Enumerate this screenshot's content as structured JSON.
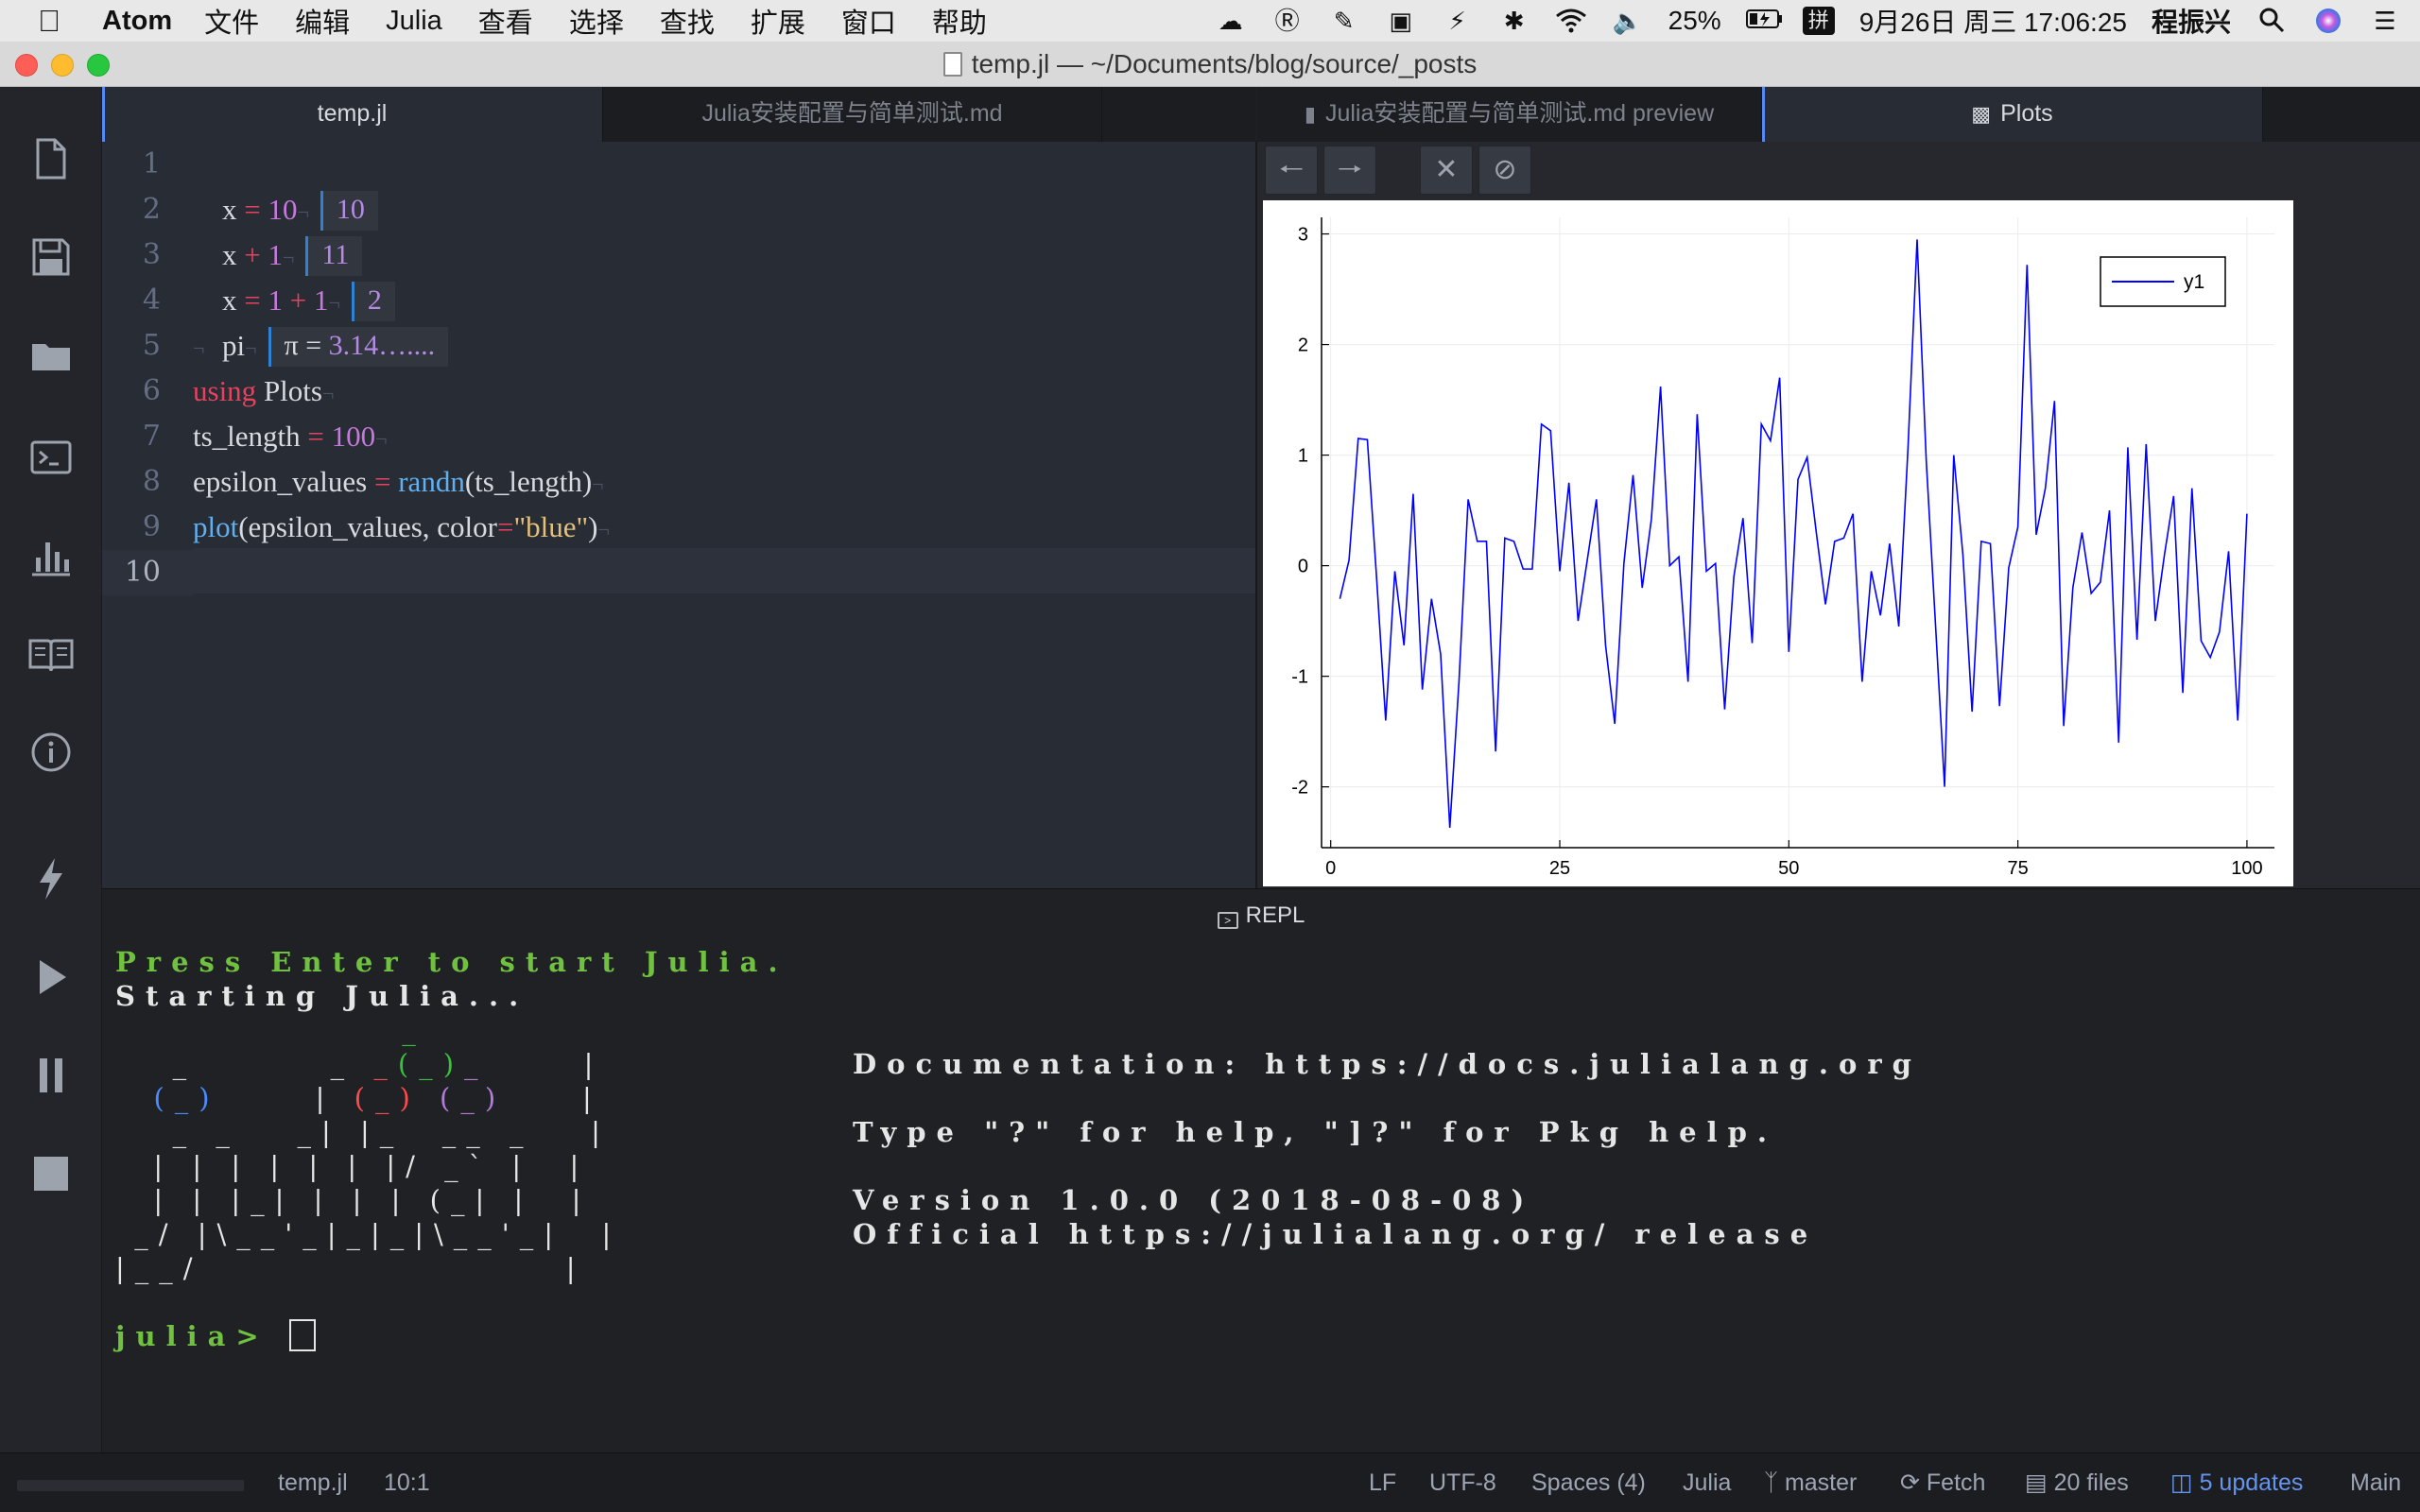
{
  "menubar": {
    "app_name": "Atom",
    "menus": [
      "文件",
      "编辑",
      "Julia",
      "查看",
      "选择",
      "查找",
      "扩展",
      "窗口",
      "帮助"
    ],
    "battery": "25%",
    "input_method": "拼",
    "datetime": "9月26日 周三  17:06:25",
    "user": "程振兴"
  },
  "window": {
    "title": "temp.jl — ~/Documents/blog/source/_posts"
  },
  "tabs_left": [
    {
      "label": "temp.jl",
      "active": true
    },
    {
      "label": "Julia安装配置与简单测试.md",
      "active": false
    }
  ],
  "tabs_right": [
    {
      "label": "Julia安装配置与简单测试.md preview",
      "active": false
    },
    {
      "label": "Plots",
      "active": true
    }
  ],
  "editor": {
    "line_numbers": [
      "1",
      "2",
      "3",
      "4",
      "5",
      "6",
      "7",
      "8",
      "9",
      "10"
    ],
    "results": {
      "l1": "10",
      "l2": "11",
      "l3": "2",
      "l4_sym": "π",
      "l4_eq": " = ",
      "l4_val": "3.14…...."
    },
    "eol": "¬"
  },
  "plot_toolbar": [
    "back",
    "forward",
    "close",
    "clear"
  ],
  "chart_data": {
    "type": "line",
    "series": [
      {
        "name": "y1",
        "color": "#0000ff",
        "values": [
          -0.3,
          0.05,
          1.15,
          1.14,
          -0.1,
          -1.4,
          -0.05,
          -0.72,
          0.65,
          -1.12,
          -0.3,
          -0.8,
          -2.37,
          -1.05,
          0.6,
          0.22,
          0.22,
          -1.68,
          0.25,
          0.22,
          -0.03,
          -0.03,
          1.28,
          1.22,
          -0.05,
          0.75,
          -0.5,
          0.05,
          0.6,
          -0.72,
          -1.43,
          0.02,
          0.82,
          -0.2,
          0.42,
          1.62,
          0.0,
          0.08,
          -1.05,
          1.37,
          -0.05,
          0.02,
          -1.3,
          -0.1,
          0.43,
          -0.7,
          1.28,
          1.13,
          1.7,
          -0.78,
          0.78,
          0.98,
          0.3,
          -0.35,
          0.22,
          0.25,
          0.47,
          -1.05,
          -0.05,
          -0.45,
          0.2,
          -0.55,
          1.05,
          2.95,
          0.95,
          -0.52,
          -2.0,
          1.0,
          0.1,
          -1.32,
          0.22,
          0.2,
          -1.27,
          -0.02,
          0.35,
          2.72,
          0.28,
          0.7,
          1.49,
          -1.45,
          -0.2,
          0.3,
          -0.25,
          -0.15,
          0.5,
          -1.6,
          1.07,
          -0.67,
          1.1,
          -0.5,
          0.1,
          0.63,
          -1.15,
          0.7,
          -0.68,
          -0.83,
          -0.6,
          0.13,
          -1.4,
          0.47
        ]
      }
    ],
    "x_start": 1,
    "xlim": [
      -1,
      103
    ],
    "ylim": [
      -2.55,
      3.15
    ],
    "xticks": [
      0,
      25,
      50,
      75,
      100
    ],
    "yticks": [
      -2,
      -1,
      0,
      1,
      2,
      3
    ],
    "grid": true,
    "legend": "top-right",
    "title": "",
    "xlabel": "",
    "ylabel": ""
  },
  "repl": {
    "header": "REPL",
    "press_enter": "Press Enter to start Julia.",
    "starting": "Starting Julia...",
    "logo": {
      "r1": "               _",
      "r2a": "   _       _ ",
      "r2b": "_",
      "r2c": "(_)",
      "r2d": "_",
      "r2e": "     |",
      "r3a": "  ",
      "r3b": "(_)",
      "r3c": "     | ",
      "r3d": "(_)",
      "r3e": " ",
      "r3f": "(_)",
      "r3g": "    |",
      "r4": "   _ _   _| |_  __ _   |",
      "r5": "  | | | | | | |/ _` |  |",
      "r6": "  | | |_| | | | (_| |  |",
      "r7": " _/ |\\__'_|_|_|\\__'_|  |",
      "r8": "|__/                   |"
    },
    "info": {
      "doc": "Documentation: https://docs.julialang.org",
      "help": "Type \"?\" for help, \"]?\" for Pkg help.",
      "version": "Version 1.0.0 (2018-08-08)",
      "official": "Official https://julialang.org/ release"
    },
    "prompt": "julia> "
  },
  "statusbar": {
    "file": "temp.jl",
    "position": "10:1",
    "line_ending": "LF",
    "encoding": "UTF-8",
    "indent": "Spaces (4)",
    "grammar": "Julia",
    "branch": "master",
    "fetch": "Fetch",
    "files": "20 files",
    "updates": "5 updates",
    "module": "Main"
  }
}
